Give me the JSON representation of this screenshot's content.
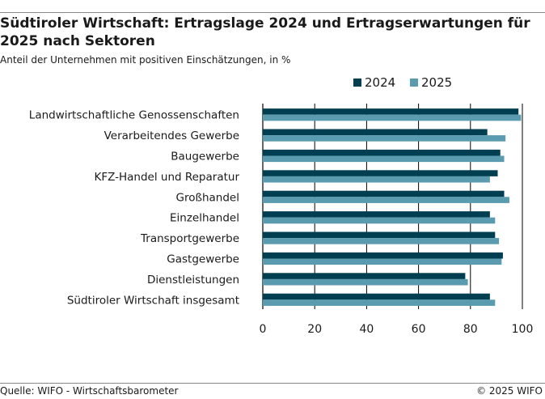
{
  "header": {
    "title": "Südtiroler Wirtschaft: Ertragslage 2024 und Ertragserwartungen für 2025 nach Sektoren",
    "subtitle": "Anteil der Unternehmen mit positiven Einschätzungen, in %"
  },
  "footer": {
    "source": "Quelle: WIFO - Wirtschaftsbarometer",
    "copyright": "© 2025 WIFO"
  },
  "colors": {
    "series_2024": "#003f52",
    "series_2025": "#5a9bb0",
    "axis": "#000000"
  },
  "chart_data": {
    "type": "bar",
    "orientation": "horizontal",
    "categories": [
      "Landwirtschaftliche Genossenschaften",
      "Verarbeitendes Gewerbe",
      "Baugewerbe",
      "KFZ-Handel und Reparatur",
      "Großhandel",
      "Einzelhandel",
      "Transportgewerbe",
      "Gastgewerbe",
      "Dienstleistungen",
      "Südtiroler Wirtschaft insgesamt"
    ],
    "series": [
      {
        "name": "2024",
        "values": [
          98.5,
          86.5,
          91.5,
          90.5,
          93,
          87.5,
          89.5,
          92.5,
          78,
          87.5
        ]
      },
      {
        "name": "2025",
        "values": [
          99.5,
          93.5,
          93,
          87.5,
          95,
          89.5,
          91,
          92,
          79,
          89.5
        ]
      }
    ],
    "xlim": [
      0,
      100
    ],
    "xticks": [
      "0",
      "20",
      "40",
      "60",
      "80",
      "100"
    ],
    "grid": "vertical",
    "legend": "top"
  }
}
